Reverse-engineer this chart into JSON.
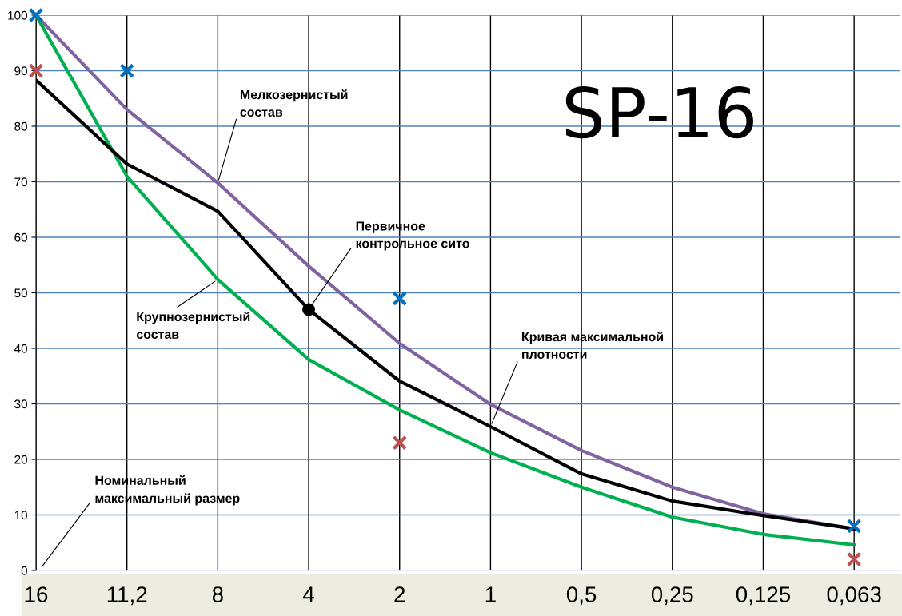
{
  "chart_data": {
    "type": "line",
    "title": "SP-16",
    "categories": [
      "16",
      "11,2",
      "8",
      "4",
      "2",
      "1",
      "0,5",
      "0,25",
      "0,125",
      "0,063"
    ],
    "series": [
      {
        "color": "#8064a2",
        "values": [
          100,
          83,
          69.8,
          54.8,
          40.9,
          29.9,
          21.6,
          15,
          10.2,
          7.5
        ]
      },
      {
        "color": "#00b050",
        "values": [
          100,
          71,
          52.4,
          38,
          28.9,
          21.2,
          15,
          9.6,
          6.5,
          4.6
        ]
      },
      {
        "color": "#000000",
        "values": [
          88.3,
          73.2,
          64.7,
          47,
          34.1,
          25.9,
          17.4,
          12.5,
          9.9,
          7.5
        ]
      },
      {
        "type": "scatter",
        "color": "#0070c0",
        "marker": "cross",
        "x": [
          "16",
          "11,2",
          "2",
          "0,063"
        ],
        "values": [
          100,
          90,
          49,
          8
        ]
      },
      {
        "type": "scatter",
        "color": "#c0504d",
        "marker": "cross",
        "x": [
          "16",
          "2",
          "0,063"
        ],
        "values": [
          90,
          23,
          2
        ]
      },
      {
        "type": "scatter",
        "color": "#000000",
        "marker": "circle",
        "x": [
          "4"
        ],
        "values": [
          47
        ]
      }
    ],
    "ylim": [
      0,
      100
    ],
    "yticks": [
      0,
      10,
      20,
      30,
      40,
      50,
      60,
      70,
      80,
      90,
      100
    ],
    "grid": true,
    "marker": "none",
    "line_style": "solid",
    "annotations": [
      {
        "text": "Мелкозернистый\nсостав",
        "x": "8",
        "y": 69.8
      },
      {
        "text": "Первичное\nконтрольное сито",
        "x": "4",
        "y": 47
      },
      {
        "text": "Крупнозернистый\nсостав",
        "x": "8",
        "y": 52.4
      },
      {
        "text": "Кривая максимальной\nплотности",
        "x": "1",
        "y": 25.9
      },
      "Номинальный\nмаксимальный размер"
    ]
  }
}
